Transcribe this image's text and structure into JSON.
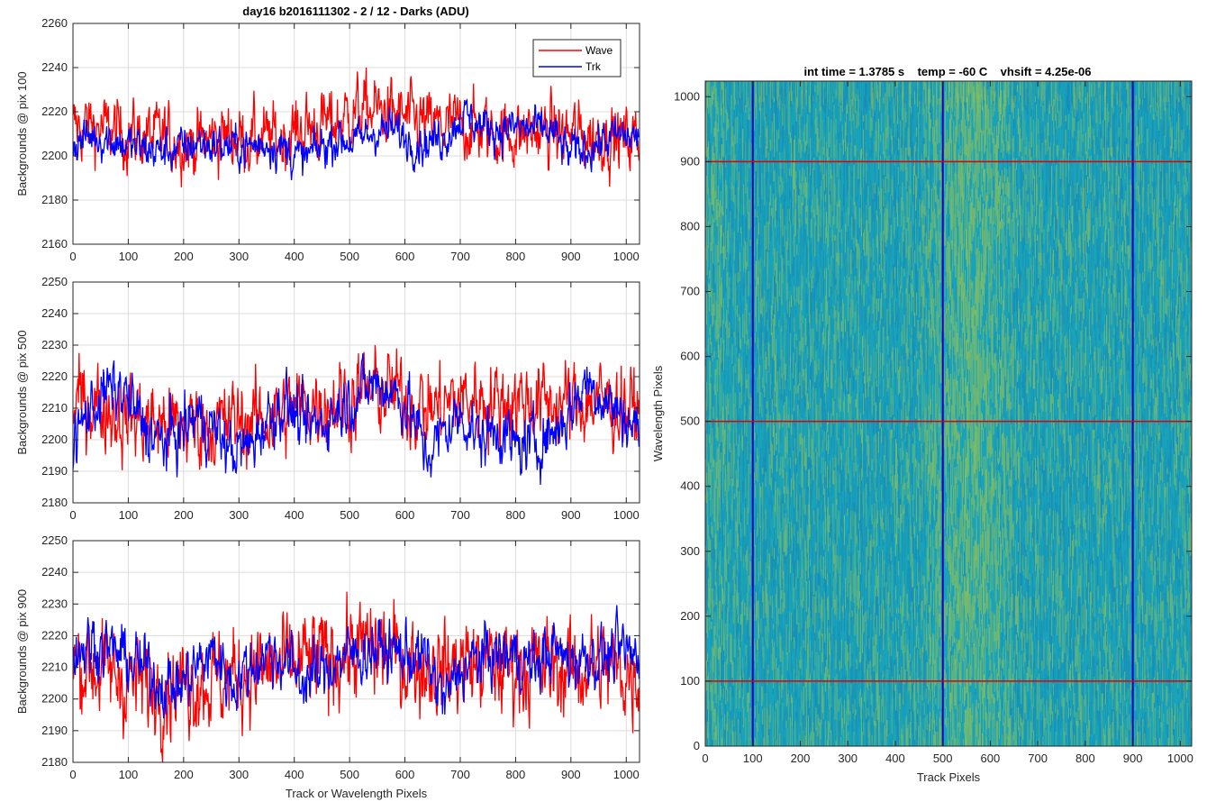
{
  "figure": {
    "title": "day16 b2016111302 - 2 / 12 - Darks (ADU)"
  },
  "colors": {
    "wave": "#ff0000",
    "trk": "#0000ff",
    "grid": "#dcdcdc",
    "axis": "#262626",
    "image_base": "#1aa3b8",
    "image_bright": "#8fbf5a",
    "image_dark": "#1580b8"
  },
  "legend": {
    "items": [
      {
        "label": "Wave",
        "color": "#ff0000"
      },
      {
        "label": "Trk",
        "color": "#0000ff"
      }
    ]
  },
  "chart_data": [
    {
      "type": "line",
      "title": "day16 b2016111302 - 2 / 12 - Darks (ADU)",
      "ylabel": "Backgrounds @ pix 100",
      "xlabel": "",
      "xlim": [
        0,
        1024
      ],
      "ylim": [
        2160,
        2260
      ],
      "xticks": [
        0,
        100,
        200,
        300,
        400,
        500,
        600,
        700,
        800,
        900,
        1000
      ],
      "yticks": [
        2160,
        2180,
        2200,
        2220,
        2240,
        2260
      ],
      "grid": true,
      "legend_position": "top-right",
      "series": [
        {
          "name": "Wave",
          "x": [
            0,
            32,
            64,
            96,
            128,
            160,
            192,
            224,
            256,
            288,
            320,
            352,
            384,
            416,
            448,
            480,
            512,
            544,
            576,
            608,
            640,
            672,
            704,
            736,
            768,
            800,
            832,
            864,
            896,
            928,
            960,
            992,
            1023
          ],
          "values": [
            2212,
            2214,
            2211,
            2210,
            2209,
            2208,
            2207,
            2206,
            2208,
            2209,
            2208,
            2207,
            2209,
            2212,
            2214,
            2216,
            2220,
            2221,
            2219,
            2216,
            2214,
            2213,
            2214,
            2212,
            2210,
            2210,
            2211,
            2211,
            2210,
            2209,
            2209,
            2208,
            2208
          ],
          "noise": 8
        },
        {
          "name": "Trk",
          "x": [
            0,
            32,
            64,
            96,
            128,
            160,
            192,
            224,
            256,
            288,
            320,
            352,
            384,
            416,
            448,
            480,
            512,
            544,
            576,
            608,
            640,
            672,
            704,
            736,
            768,
            800,
            832,
            864,
            896,
            928,
            960,
            992,
            1023
          ],
          "values": [
            2205,
            2209,
            2208,
            2205,
            2203,
            2202,
            2203,
            2206,
            2205,
            2204,
            2204,
            2206,
            2203,
            2198,
            2204,
            2208,
            2206,
            2211,
            2212,
            2207,
            2206,
            2209,
            2218,
            2214,
            2212,
            2213,
            2212,
            2211,
            2201,
            2203,
            2207,
            2209,
            2208
          ],
          "noise": 5
        }
      ]
    },
    {
      "type": "line",
      "title": "",
      "ylabel": "Backgrounds @ pix 500",
      "xlabel": "",
      "xlim": [
        0,
        1024
      ],
      "ylim": [
        2180,
        2250
      ],
      "xticks": [
        0,
        100,
        200,
        300,
        400,
        500,
        600,
        700,
        800,
        900,
        1000
      ],
      "yticks": [
        2180,
        2190,
        2200,
        2210,
        2220,
        2230,
        2240,
        2250
      ],
      "grid": true,
      "series": [
        {
          "name": "Wave",
          "x": [
            0,
            32,
            64,
            96,
            128,
            160,
            192,
            224,
            256,
            288,
            320,
            352,
            384,
            416,
            448,
            480,
            512,
            544,
            576,
            608,
            640,
            672,
            704,
            736,
            768,
            800,
            832,
            864,
            896,
            928,
            960,
            992,
            1023
          ],
          "values": [
            2211,
            2212,
            2210,
            2207,
            2206,
            2205,
            2204,
            2205,
            2204,
            2206,
            2206,
            2207,
            2208,
            2211,
            2212,
            2213,
            2214,
            2216,
            2215,
            2212,
            2210,
            2211,
            2213,
            2213,
            2212,
            2213,
            2212,
            2212,
            2211,
            2212,
            2212,
            2210,
            2209
          ],
          "noise": 7
        },
        {
          "name": "Trk",
          "x": [
            0,
            32,
            64,
            96,
            128,
            160,
            192,
            224,
            256,
            288,
            320,
            352,
            384,
            416,
            448,
            480,
            512,
            544,
            576,
            608,
            640,
            672,
            704,
            736,
            768,
            800,
            832,
            864,
            896,
            928,
            960,
            992,
            1023
          ],
          "values": [
            2199,
            2210,
            2216,
            2214,
            2204,
            2199,
            2202,
            2208,
            2203,
            2196,
            2198,
            2207,
            2212,
            2204,
            2205,
            2210,
            2214,
            2218,
            2216,
            2210,
            2195,
            2203,
            2208,
            2200,
            2204,
            2197,
            2199,
            2202,
            2208,
            2219,
            2213,
            2208,
            2203
          ],
          "noise": 5
        }
      ]
    },
    {
      "type": "line",
      "title": "",
      "ylabel": "Backgrounds @ pix 900",
      "xlabel": "Track or Wavelength Pixels",
      "xlim": [
        0,
        1024
      ],
      "ylim": [
        2180,
        2250
      ],
      "xticks": [
        0,
        100,
        200,
        300,
        400,
        500,
        600,
        700,
        800,
        900,
        1000
      ],
      "yticks": [
        2180,
        2190,
        2200,
        2210,
        2220,
        2230,
        2240,
        2250
      ],
      "grid": true,
      "series": [
        {
          "name": "Wave",
          "x": [
            0,
            32,
            64,
            96,
            128,
            160,
            192,
            224,
            256,
            288,
            320,
            352,
            384,
            416,
            448,
            480,
            512,
            544,
            576,
            608,
            640,
            672,
            704,
            736,
            768,
            800,
            832,
            864,
            896,
            928,
            960,
            992,
            1023
          ],
          "values": [
            2210,
            2211,
            2208,
            2206,
            2205,
            2204,
            2205,
            2206,
            2206,
            2207,
            2208,
            2209,
            2210,
            2212,
            2213,
            2214,
            2215,
            2216,
            2214,
            2212,
            2210,
            2210,
            2211,
            2211,
            2210,
            2211,
            2210,
            2210,
            2209,
            2210,
            2210,
            2209,
            2208
          ],
          "noise": 8
        },
        {
          "name": "Trk",
          "x": [
            0,
            32,
            64,
            96,
            128,
            160,
            192,
            224,
            256,
            288,
            320,
            352,
            384,
            416,
            448,
            480,
            512,
            544,
            576,
            608,
            640,
            672,
            704,
            736,
            768,
            800,
            832,
            864,
            896,
            928,
            960,
            992,
            1023
          ],
          "values": [
            2215,
            2218,
            2216,
            2213,
            2210,
            2205,
            2204,
            2210,
            2215,
            2205,
            2210,
            2215,
            2212,
            2206,
            2208,
            2213,
            2214,
            2216,
            2215,
            2214,
            2212,
            2200,
            2210,
            2213,
            2214,
            2214,
            2210,
            2216,
            2212,
            2214,
            2213,
            2215,
            2213
          ],
          "noise": 5
        }
      ]
    },
    {
      "type": "heatmap",
      "title": "int time = 1.3785 s    temp = -60 C    vhsift = 4.25e-06",
      "xlabel": "Track Pixels",
      "ylabel": "Wavelength Pixels",
      "xlim": [
        0,
        1024
      ],
      "ylim": [
        0,
        1024
      ],
      "xticks": [
        0,
        100,
        200,
        300,
        400,
        500,
        600,
        700,
        800,
        900,
        1000
      ],
      "yticks": [
        0,
        100,
        200,
        300,
        400,
        500,
        600,
        700,
        800,
        900,
        1000
      ],
      "grid": false,
      "vertical_lines": [
        100,
        500,
        900
      ],
      "horizontal_lines": [
        100,
        500,
        900
      ],
      "vertical_line_color": "#0000c8",
      "horizontal_line_color": "#e00000",
      "bright_bands": [
        {
          "x_start": 470,
          "x_end": 640,
          "level": 0.55
        },
        {
          "x_start": 0,
          "x_end": 40,
          "level": 0.25
        }
      ]
    }
  ]
}
